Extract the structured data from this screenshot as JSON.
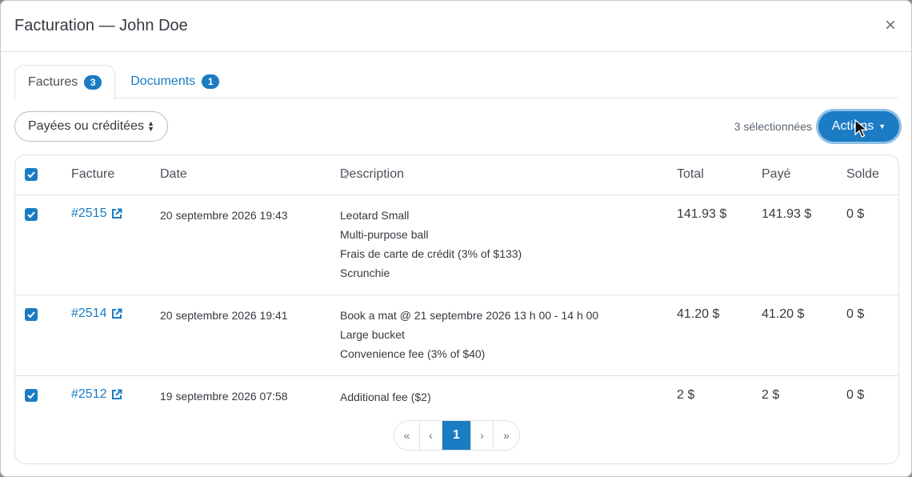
{
  "modal": {
    "title": "Facturation — John Doe",
    "close_icon": "×"
  },
  "tabs": [
    {
      "label": "Factures",
      "count": "3",
      "active": true
    },
    {
      "label": "Documents",
      "count": "1",
      "active": false
    }
  ],
  "filter": {
    "value": "Payées ou créditées"
  },
  "toolbar": {
    "selected_text": "3 sélectionnées",
    "actions_label": "Actions"
  },
  "table": {
    "columns": [
      "Facture",
      "Date",
      "Description",
      "Total",
      "Payé",
      "Solde"
    ],
    "rows": [
      {
        "invoice": "#2515",
        "date": "20 septembre 2026 19:43",
        "description": [
          "Leotard Small",
          "Multi-purpose ball",
          "Frais de carte de crédit (3% of $133)",
          "Scrunchie"
        ],
        "total": "141.93 $",
        "paid": "141.93 $",
        "balance": "0 $",
        "checked": true
      },
      {
        "invoice": "#2514",
        "date": "20 septembre 2026 19:41",
        "description": [
          "Book a mat @ 21 septembre 2026 13 h 00 - 14 h 00",
          "Large bucket",
          "Convenience fee (3% of $40)"
        ],
        "total": "41.20 $",
        "paid": "41.20 $",
        "balance": "0 $",
        "checked": true
      },
      {
        "invoice": "#2512",
        "date": "19 septembre 2026 07:58",
        "description": [
          "Additional fee ($2)"
        ],
        "total": "2 $",
        "paid": "2 $",
        "balance": "0 $",
        "checked": true
      }
    ]
  },
  "pagination": {
    "first": "«",
    "prev": "‹",
    "current": "1",
    "next": "›",
    "last": "»"
  },
  "colors": {
    "accent": "#1b7cc3",
    "focus_ring": "#8ec0e6"
  }
}
